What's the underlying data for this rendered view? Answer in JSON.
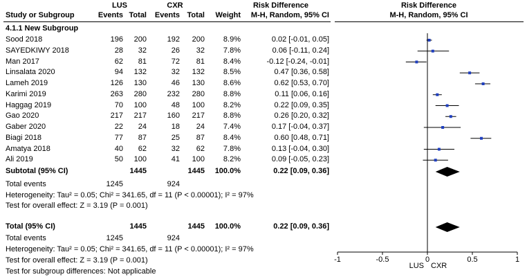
{
  "headers": {
    "group1": "LUS",
    "group2": "CXR",
    "effect_label": "Risk Difference",
    "study_col": "Study or Subgroup",
    "events": "Events",
    "total": "Total",
    "weight": "Weight",
    "method_col": "M-H, Random, 95% CI",
    "plot_title": "Risk Difference",
    "plot_method": "M-H, Random, 95% CI"
  },
  "subgroup_name": "4.1.1 New Subgroup",
  "subtotal": {
    "label": "Subtotal (95% CI)",
    "total1": "1445",
    "total2": "1445",
    "weight": "100.0%",
    "ci_text": "0.22 [0.09, 0.36]",
    "events_label": "Total events",
    "events1": "1245",
    "events2": "924",
    "heterogeneity": "Heterogeneity: Tau² = 0.05; Chi² = 341.65, df = 11 (P < 0.00001); I² = 97%",
    "overall": "Test for overall effect: Z = 3.19 (P = 0.001)"
  },
  "total": {
    "label": "Total (95% CI)",
    "total1": "1445",
    "total2": "1445",
    "weight": "100.0%",
    "ci_text": "0.22 [0.09, 0.36]",
    "events_label": "Total events",
    "events1": "1245",
    "events2": "924",
    "heterogeneity": "Heterogeneity: Tau² = 0.05; Chi² = 341.65, df = 11 (P < 0.00001); I² = 97%",
    "overall": "Test for overall effect: Z = 3.19 (P = 0.001)",
    "subgroup_diff": "Test for subgroup differences: Not applicable"
  },
  "axis": {
    "favours_left": "LUS",
    "favours_right": "CXR"
  },
  "chart_data": {
    "type": "forest",
    "xlim": [
      -1,
      1
    ],
    "ticks": [
      -1,
      -0.5,
      0,
      0.5,
      1
    ],
    "tick_labels": [
      "-1",
      "-0.5",
      "0",
      "0.5",
      "1"
    ],
    "studies": [
      {
        "name": "Sood 2018",
        "e1": 196,
        "n1": 200,
        "e2": 192,
        "n2": 200,
        "weight": "8.9%",
        "rd": 0.02,
        "lo": -0.01,
        "hi": 0.05,
        "ci_text": "0.02 [-0.01, 0.05]"
      },
      {
        "name": "SAYEDKIWY 2018",
        "e1": 28,
        "n1": 32,
        "e2": 26,
        "n2": 32,
        "weight": "7.8%",
        "rd": 0.06,
        "lo": -0.11,
        "hi": 0.24,
        "ci_text": "0.06 [-0.11, 0.24]"
      },
      {
        "name": "Man 2017",
        "e1": 62,
        "n1": 81,
        "e2": 72,
        "n2": 81,
        "weight": "8.4%",
        "rd": -0.12,
        "lo": -0.24,
        "hi": -0.01,
        "ci_text": "-0.12 [-0.24, -0.01]"
      },
      {
        "name": "Linsalata 2020",
        "e1": 94,
        "n1": 132,
        "e2": 32,
        "n2": 132,
        "weight": "8.5%",
        "rd": 0.47,
        "lo": 0.36,
        "hi": 0.58,
        "ci_text": "0.47 [0.36, 0.58]"
      },
      {
        "name": "Lameh 2019",
        "e1": 126,
        "n1": 130,
        "e2": 46,
        "n2": 130,
        "weight": "8.6%",
        "rd": 0.62,
        "lo": 0.53,
        "hi": 0.7,
        "ci_text": "0.62 [0.53, 0.70]"
      },
      {
        "name": "Karimi 2019",
        "e1": 263,
        "n1": 280,
        "e2": 232,
        "n2": 280,
        "weight": "8.8%",
        "rd": 0.11,
        "lo": 0.06,
        "hi": 0.16,
        "ci_text": "0.11 [0.06, 0.16]"
      },
      {
        "name": "Haggag 2019",
        "e1": 70,
        "n1": 100,
        "e2": 48,
        "n2": 100,
        "weight": "8.2%",
        "rd": 0.22,
        "lo": 0.09,
        "hi": 0.35,
        "ci_text": "0.22 [0.09, 0.35]"
      },
      {
        "name": "Gao 2020",
        "e1": 217,
        "n1": 217,
        "e2": 160,
        "n2": 217,
        "weight": "8.8%",
        "rd": 0.26,
        "lo": 0.2,
        "hi": 0.32,
        "ci_text": "0.26 [0.20, 0.32]"
      },
      {
        "name": "Gaber 2020",
        "e1": 22,
        "n1": 24,
        "e2": 18,
        "n2": 24,
        "weight": "7.4%",
        "rd": 0.17,
        "lo": -0.04,
        "hi": 0.37,
        "ci_text": "0.17 [-0.04, 0.37]"
      },
      {
        "name": "Biagi 2018",
        "e1": 77,
        "n1": 87,
        "e2": 25,
        "n2": 87,
        "weight": "8.4%",
        "rd": 0.6,
        "lo": 0.48,
        "hi": 0.71,
        "ci_text": "0.60 [0.48, 0.71]"
      },
      {
        "name": "Amatya 2018",
        "e1": 40,
        "n1": 62,
        "e2": 32,
        "n2": 62,
        "weight": "7.8%",
        "rd": 0.13,
        "lo": -0.04,
        "hi": 0.3,
        "ci_text": "0.13 [-0.04, 0.30]"
      },
      {
        "name": "Ali 2019",
        "e1": 50,
        "n1": 100,
        "e2": 41,
        "n2": 100,
        "weight": "8.2%",
        "rd": 0.09,
        "lo": -0.05,
        "hi": 0.23,
        "ci_text": "0.09 [-0.05, 0.23]"
      }
    ],
    "pooled": [
      {
        "label": "Subtotal (95% CI)",
        "rd": 0.22,
        "lo": 0.09,
        "hi": 0.36
      },
      {
        "label": "Total (95% CI)",
        "rd": 0.22,
        "lo": 0.09,
        "hi": 0.36
      }
    ],
    "marker_color": "#1f3fbf",
    "diamond_color": "#000000"
  }
}
